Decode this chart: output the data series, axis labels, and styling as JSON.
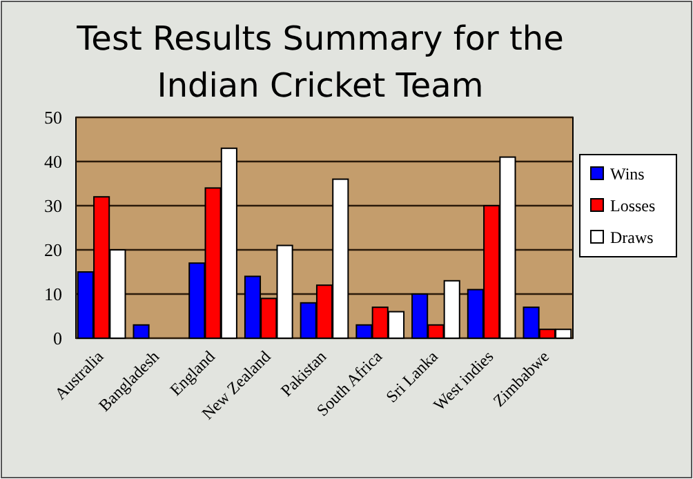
{
  "chart_data": {
    "type": "bar",
    "title": "Test Results Summary for the Indian Cricket Team",
    "categories": [
      "Australia",
      "Bangladesh",
      "England",
      "New Zealand",
      "Pakistan",
      "South Africa",
      "Sri Lanka",
      "West indies",
      "Zimbabwe"
    ],
    "series": [
      {
        "name": "Wins",
        "color": "#0000ff",
        "values": [
          15,
          3,
          17,
          14,
          8,
          3,
          10,
          11,
          7
        ]
      },
      {
        "name": "Losses",
        "color": "#ff0000",
        "values": [
          32,
          0,
          34,
          9,
          12,
          7,
          3,
          30,
          2
        ]
      },
      {
        "name": "Draws",
        "color": "#ffffff",
        "values": [
          20,
          0,
          43,
          21,
          36,
          6,
          13,
          41,
          2
        ]
      }
    ],
    "ylim": [
      0,
      50
    ],
    "yticks": [
      0,
      10,
      20,
      30,
      40,
      50
    ],
    "grid": "y",
    "legend": "right"
  }
}
